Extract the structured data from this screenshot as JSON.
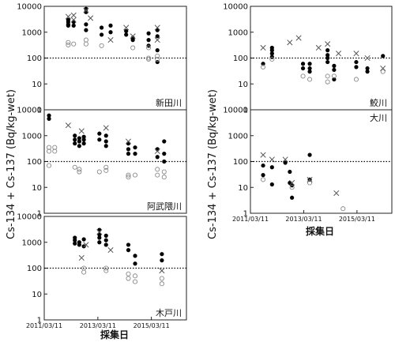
{
  "ylabel": "Cs-134 + Cs-137 (Bq/kg-wet)",
  "xlabel": "採集日",
  "chart_data": [
    {
      "type": "scatter",
      "title": "新田川",
      "yscale": "log",
      "ylim": [
        1,
        10000
      ],
      "ytick_labels": [
        "1",
        "10",
        "100",
        "1000",
        "10000"
      ],
      "xlim": [
        "2011/03/11",
        "2016/07/01"
      ],
      "reference_line": 100,
      "series": [
        {
          "marker": "filled-circle",
          "points": [
            [
              "2012/02/01",
              3000
            ],
            [
              "2012/02/01",
              2500
            ],
            [
              "2012/02/01",
              2000
            ],
            [
              "2012/02/01",
              1800
            ],
            [
              "2012/04/15",
              2500
            ],
            [
              "2012/04/15",
              1800
            ],
            [
              "2012/10/01",
              8000
            ],
            [
              "2012/10/01",
              6000
            ],
            [
              "2012/10/01",
              2000
            ],
            [
              "2012/10/01",
              1200
            ],
            [
              "2013/05/01",
              1500
            ],
            [
              "2013/05/01",
              800
            ],
            [
              "2013/09/01",
              1800
            ],
            [
              "2013/09/01",
              1000
            ],
            [
              "2014/04/01",
              1100
            ],
            [
              "2014/04/01",
              800
            ],
            [
              "2014/07/01",
              600
            ],
            [
              "2014/07/01",
              500
            ],
            [
              "2015/02/01",
              900
            ],
            [
              "2015/02/01",
              500
            ],
            [
              "2015/02/01",
              300
            ],
            [
              "2015/06/01",
              1200
            ],
            [
              "2015/06/01",
              700
            ],
            [
              "2015/06/01",
              200
            ],
            [
              "2015/06/01",
              70
            ]
          ]
        },
        {
          "marker": "open-circle",
          "points": [
            [
              "2012/02/01",
              400
            ],
            [
              "2012/02/01",
              320
            ],
            [
              "2012/04/15",
              350
            ],
            [
              "2012/10/01",
              500
            ],
            [
              "2012/10/01",
              350
            ],
            [
              "2013/05/01",
              300
            ],
            [
              "2014/07/01",
              250
            ],
            [
              "2015/02/01",
              250
            ],
            [
              "2015/02/01",
              100
            ],
            [
              "2015/02/01",
              90
            ],
            [
              "2015/06/01",
              120
            ],
            [
              "2015/06/01",
              90
            ]
          ]
        },
        {
          "marker": "cross",
          "points": [
            [
              "2012/02/01",
              4000
            ],
            [
              "2012/04/15",
              4500
            ],
            [
              "2012/04/15",
              3000
            ],
            [
              "2012/10/01",
              7000
            ],
            [
              "2012/12/01",
              3500
            ],
            [
              "2013/09/01",
              500
            ],
            [
              "2014/04/01",
              1500
            ],
            [
              "2014/07/01",
              700
            ],
            [
              "2015/06/01",
              1500
            ],
            [
              "2015/06/01",
              500
            ]
          ]
        }
      ]
    },
    {
      "type": "scatter",
      "title": "阿武隈川",
      "yscale": "log",
      "ylim": [
        1,
        10000
      ],
      "ytick_labels": [
        "1",
        "10",
        "100",
        "1000",
        "10000"
      ],
      "xlim": [
        "2011/03/11",
        "2016/07/01"
      ],
      "reference_line": 100,
      "series": [
        {
          "marker": "filled-circle",
          "points": [
            [
              "2011/05/15",
              6000
            ],
            [
              "2011/05/15",
              4500
            ],
            [
              "2012/05/01",
              1000
            ],
            [
              "2012/05/01",
              700
            ],
            [
              "2012/05/01",
              500
            ],
            [
              "2012/07/01",
              800
            ],
            [
              "2012/07/01",
              600
            ],
            [
              "2012/07/01",
              400
            ],
            [
              "2012/09/01",
              900
            ],
            [
              "2012/09/01",
              700
            ],
            [
              "2012/09/01",
              500
            ],
            [
              "2013/04/01",
              1200
            ],
            [
              "2013/04/01",
              700
            ],
            [
              "2013/07/01",
              1000
            ],
            [
              "2013/07/01",
              600
            ],
            [
              "2013/07/01",
              400
            ],
            [
              "2014/05/01",
              500
            ],
            [
              "2014/05/01",
              300
            ],
            [
              "2014/05/01",
              200
            ],
            [
              "2014/08/01",
              350
            ],
            [
              "2014/08/01",
              200
            ],
            [
              "2015/06/01",
              300
            ],
            [
              "2015/06/01",
              150
            ],
            [
              "2015/09/01",
              600
            ],
            [
              "2015/09/01",
              200
            ],
            [
              "2015/09/01",
              100
            ]
          ]
        },
        {
          "marker": "open-circle",
          "points": [
            [
              "2011/05/15",
              350
            ],
            [
              "2011/05/15",
              250
            ],
            [
              "2011/05/15",
              70
            ],
            [
              "2011/08/01",
              350
            ],
            [
              "2011/08/01",
              250
            ],
            [
              "2012/05/01",
              60
            ],
            [
              "2012/07/01",
              50
            ],
            [
              "2012/07/01",
              40
            ],
            [
              "2013/04/01",
              40
            ],
            [
              "2013/07/01",
              60
            ],
            [
              "2013/07/01",
              45
            ],
            [
              "2014/05/01",
              30
            ],
            [
              "2014/05/01",
              25
            ],
            [
              "2014/08/01",
              30
            ],
            [
              "2015/06/01",
              50
            ],
            [
              "2015/06/01",
              30
            ],
            [
              "2015/09/01",
              40
            ],
            [
              "2015/09/01",
              25
            ]
          ]
        },
        {
          "marker": "cross",
          "points": [
            [
              "2012/02/01",
              2500
            ],
            [
              "2012/08/01",
              1500
            ],
            [
              "2013/07/01",
              2000
            ],
            [
              "2014/05/01",
              600
            ],
            [
              "2015/06/01",
              250
            ]
          ]
        }
      ]
    },
    {
      "type": "scatter",
      "title": "木戸川",
      "yscale": "log",
      "ylim": [
        1,
        10000
      ],
      "ytick_labels": [
        "1",
        "10",
        "100",
        "1000",
        "10000"
      ],
      "xlim": [
        "2011/03/11",
        "2016/07/01"
      ],
      "xtick_labels": [
        "2011/03/11",
        "2013/03/11",
        "2015/03/11"
      ],
      "reference_line": 100,
      "series": [
        {
          "marker": "filled-circle",
          "points": [
            [
              "2012/05/01",
              1500
            ],
            [
              "2012/05/01",
              1200
            ],
            [
              "2012/05/01",
              900
            ],
            [
              "2012/07/01",
              1000
            ],
            [
              "2012/07/01",
              800
            ],
            [
              "2012/09/01",
              1300
            ],
            [
              "2012/09/01",
              700
            ],
            [
              "2013/04/01",
              3000
            ],
            [
              "2013/04/01",
              2000
            ],
            [
              "2013/04/01",
              1500
            ],
            [
              "2013/04/01",
              1000
            ],
            [
              "2013/07/01",
              1800
            ],
            [
              "2013/07/01",
              1200
            ],
            [
              "2013/07/01",
              800
            ],
            [
              "2014/05/01",
              800
            ],
            [
              "2014/05/01",
              500
            ],
            [
              "2014/08/01",
              300
            ],
            [
              "2014/08/01",
              150
            ],
            [
              "2015/08/01",
              350
            ],
            [
              "2015/08/01",
              200
            ]
          ]
        },
        {
          "marker": "open-circle",
          "points": [
            [
              "2012/09/01",
              100
            ],
            [
              "2012/09/01",
              70
            ],
            [
              "2013/07/01",
              100
            ],
            [
              "2013/07/01",
              80
            ],
            [
              "2014/05/01",
              60
            ],
            [
              "2014/05/01",
              40
            ],
            [
              "2014/08/01",
              50
            ],
            [
              "2014/08/01",
              30
            ],
            [
              "2015/08/01",
              40
            ],
            [
              "2015/08/01",
              25
            ]
          ]
        },
        {
          "marker": "cross",
          "points": [
            [
              "2012/08/01",
              250
            ],
            [
              "2012/10/01",
              800
            ],
            [
              "2013/04/01",
              2500
            ],
            [
              "2013/09/01",
              500
            ],
            [
              "2015/08/01",
              80
            ]
          ]
        }
      ]
    },
    {
      "type": "scatter",
      "title": "鮫川",
      "yscale": "log",
      "ylim": [
        1,
        10000
      ],
      "ytick_labels": [
        "1",
        "10",
        "100",
        "1000",
        "10000"
      ],
      "xlim": [
        "2011/03/11",
        "2016/07/01"
      ],
      "reference_line": 100,
      "series": [
        {
          "marker": "filled-circle",
          "points": [
            [
              "2011/09/01",
              60
            ],
            [
              "2012/01/01",
              250
            ],
            [
              "2012/01/01",
              200
            ],
            [
              "2012/01/01",
              150
            ],
            [
              "2012/01/01",
              110
            ],
            [
              "2013/03/01",
              60
            ],
            [
              "2013/03/01",
              40
            ],
            [
              "2013/06/01",
              60
            ],
            [
              "2013/06/01",
              40
            ],
            [
              "2013/06/01",
              30
            ],
            [
              "2014/02/01",
              200
            ],
            [
              "2014/02/01",
              130
            ],
            [
              "2014/02/01",
              100
            ],
            [
              "2014/02/01",
              70
            ],
            [
              "2014/05/01",
              50
            ],
            [
              "2014/05/01",
              35
            ],
            [
              "2014/05/01",
              15
            ],
            [
              "2015/03/01",
              70
            ],
            [
              "2015/03/01",
              45
            ],
            [
              "2015/08/01",
              40
            ],
            [
              "2015/08/01",
              30
            ],
            [
              "2016/03/01",
              120
            ]
          ]
        },
        {
          "marker": "open-circle",
          "points": [
            [
              "2011/09/01",
              45
            ],
            [
              "2012/01/01",
              90
            ],
            [
              "2013/03/01",
              20
            ],
            [
              "2013/06/01",
              15
            ],
            [
              "2014/02/01",
              20
            ],
            [
              "2014/02/01",
              12
            ],
            [
              "2014/05/01",
              20
            ],
            [
              "2015/03/01",
              15
            ],
            [
              "2016/03/01",
              30
            ]
          ]
        },
        {
          "marker": "cross",
          "points": [
            [
              "2011/09/01",
              250
            ],
            [
              "2012/09/01",
              400
            ],
            [
              "2013/01/01",
              600
            ],
            [
              "2013/10/01",
              250
            ],
            [
              "2014/02/01",
              350
            ],
            [
              "2014/07/01",
              150
            ],
            [
              "2015/03/01",
              150
            ],
            [
              "2015/08/01",
              100
            ],
            [
              "2016/03/01",
              40
            ]
          ]
        }
      ]
    },
    {
      "type": "scatter",
      "title": "大川",
      "yscale": "log",
      "ylim": [
        1,
        10000
      ],
      "ytick_labels": [
        "1",
        "10",
        "100",
        "1000",
        "10000"
      ],
      "xlim": [
        "2011/03/11",
        "2016/07/01"
      ],
      "xtick_labels": [
        "2011/03/11",
        "2013/03/11",
        "2015/03/11"
      ],
      "reference_line": 100,
      "series": [
        {
          "marker": "filled-circle",
          "points": [
            [
              "2011/09/01",
              70
            ],
            [
              "2011/09/01",
              30
            ],
            [
              "2012/01/01",
              60
            ],
            [
              "2012/01/01",
              13
            ],
            [
              "2012/07/01",
              90
            ],
            [
              "2012/09/01",
              40
            ],
            [
              "2012/09/01",
              15
            ],
            [
              "2012/10/01",
              12
            ],
            [
              "2012/10/01",
              4
            ],
            [
              "2013/06/01",
              180
            ],
            [
              "2013/06/01",
              20
            ]
          ]
        },
        {
          "marker": "open-circle",
          "points": [
            [
              "2011/09/01",
              20
            ],
            [
              "2012/10/01",
              10
            ],
            [
              "2013/06/01",
              15
            ],
            [
              "2014/09/01",
              1.5
            ]
          ]
        },
        {
          "marker": "cross",
          "points": [
            [
              "2011/09/01",
              180
            ],
            [
              "2012/01/01",
              120
            ],
            [
              "2012/07/01",
              120
            ],
            [
              "2012/10/01",
              15
            ],
            [
              "2013/06/01",
              20
            ],
            [
              "2014/06/01",
              6
            ]
          ]
        }
      ]
    }
  ]
}
